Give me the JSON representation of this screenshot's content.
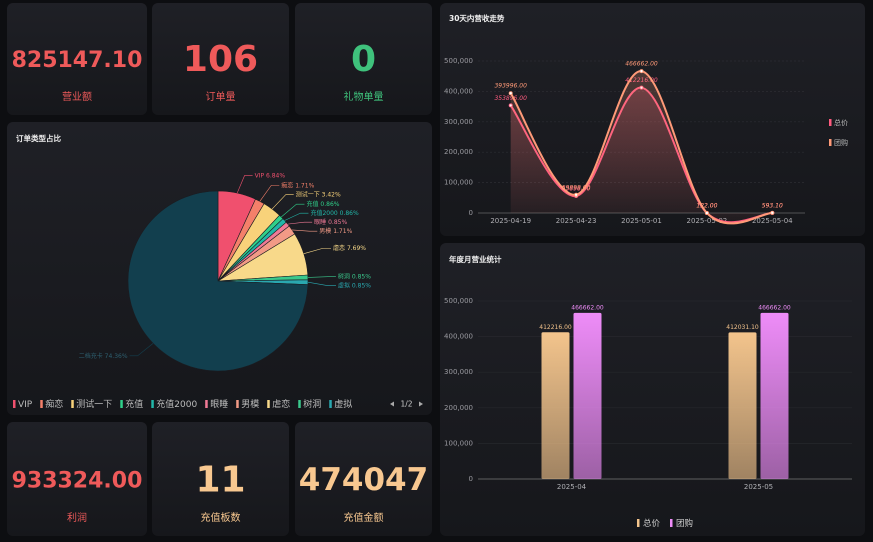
{
  "stats": [
    {
      "value": "825147.10",
      "label": "营业额",
      "color": "#ef5a5a"
    },
    {
      "value": "106",
      "label": "订单量",
      "color": "#ef5a5a"
    },
    {
      "value": "0",
      "label": "礼物单量",
      "color": "#3fc27c"
    },
    {
      "value": "933324.00",
      "label": "利润",
      "color": "#ef5a5a"
    },
    {
      "value": "11",
      "label": "充值板数",
      "color": "#f8c890"
    },
    {
      "value": "474047",
      "label": "充值金额",
      "color": "#f8c890"
    }
  ],
  "chart_data": [
    {
      "type": "pie",
      "title": "订单类型占比",
      "categories": [
        "VIP",
        "痴恋",
        "测试一下",
        "充值",
        "充值2000",
        "眼睡",
        "男模",
        "虐恋",
        "树洞",
        "虚拟",
        "二档充卡"
      ],
      "values": [
        6.84,
        1.71,
        3.42,
        0.86,
        0.86,
        0.85,
        1.71,
        7.69,
        0.85,
        0.85,
        74.36
      ],
      "value_labels": [
        "6.84%",
        "1.71%",
        "3.42%",
        "0.86%",
        "0.86%",
        "0.85%",
        "1.71%",
        "7.69%",
        "0.85%",
        "0.85%",
        "74.36%"
      ],
      "colors": [
        "#f0506e",
        "#f4806a",
        "#f8d27a",
        "#2fd08a",
        "#22b6a8",
        "#f07a96",
        "#f29a86",
        "#f8d98a",
        "#3ac88c",
        "#2aa8b0",
        "#123f4e"
      ],
      "legend_page": "1/2"
    },
    {
      "type": "line",
      "title": "30天内营收走势",
      "categories": [
        "2025-04-19",
        "2025-04-23",
        "2025-05-01",
        "2025-05-02",
        "2025-05-04"
      ],
      "series": [
        {
          "name": "总价",
          "color": "#ff5b7f",
          "values": [
            353896,
            55898,
            412216,
            122,
            593.1
          ],
          "value_labels": [
            "353896.00",
            "55898.00",
            "412216.00",
            "122.00",
            "593.10"
          ]
        },
        {
          "name": "团购",
          "color": "#ff9a78",
          "values": [
            393996,
            59898,
            466662,
            122,
            593.1
          ],
          "value_labels": [
            "393996.00",
            "59898.00",
            "466662.00",
            "122.00",
            "593.10"
          ]
        }
      ],
      "ylim": [
        0,
        500000
      ],
      "yticks": [
        0,
        {
          "value": 100000,
          "label": "100,000"
        },
        {
          "value": 200000,
          "label": "200,000"
        },
        {
          "value": 300000,
          "label": "300,000"
        },
        {
          "value": 400000,
          "label": "400,000"
        },
        {
          "value": 500000,
          "label": "500,000"
        }
      ],
      "smooth": true,
      "grid": true,
      "legend": "right"
    },
    {
      "type": "bar",
      "title": "年度月营业统计",
      "categories": [
        "2025-04",
        "2025-05"
      ],
      "series": [
        {
          "name": "总价",
          "color": "#f3c48c",
          "values": [
            412216,
            412031.1
          ],
          "value_labels": [
            "412216.00",
            "412031.10"
          ]
        },
        {
          "name": "团购",
          "color": "#ee8cf8",
          "values": [
            466662,
            466662
          ],
          "value_labels": [
            "466662.00",
            "466662.00"
          ]
        }
      ],
      "ylim": [
        0,
        500000
      ],
      "yticks": [
        0,
        {
          "value": 100000,
          "label": "100,000"
        },
        {
          "value": 200000,
          "label": "200,000"
        },
        {
          "value": 300000,
          "label": "300,000"
        },
        {
          "value": 400000,
          "label": "400,000"
        },
        {
          "value": 500000,
          "label": "500,000"
        }
      ],
      "grid": true,
      "legend": "bottom"
    }
  ]
}
